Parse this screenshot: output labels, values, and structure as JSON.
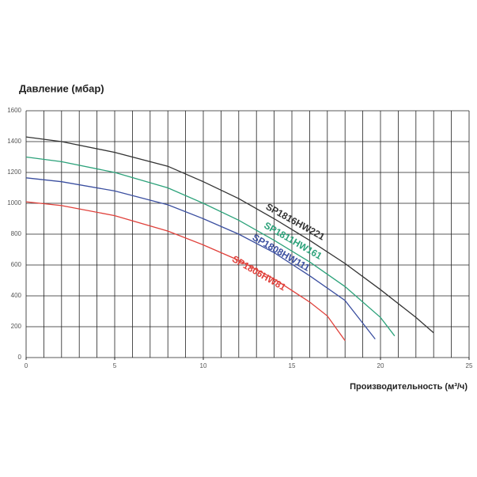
{
  "chart_data": {
    "type": "line",
    "y_axis_label": "Давление (мбар)",
    "x_axis_label": "Производительность (м³/ч)",
    "xlim": [
      0,
      25
    ],
    "xticks": [
      0,
      5,
      10,
      15,
      20,
      25
    ],
    "x_minor_ticks": [
      0,
      1,
      2,
      3,
      4,
      5,
      6,
      7,
      8,
      9,
      10,
      11,
      12,
      13,
      14,
      15,
      16,
      17,
      18,
      19,
      20,
      21,
      22,
      23,
      24,
      25
    ],
    "ylim": [
      0,
      1600
    ],
    "yticks": [
      0,
      200,
      400,
      600,
      800,
      1000,
      1200,
      1400,
      1600
    ],
    "grid": true,
    "series": [
      {
        "name": "SP1816HW221",
        "color": "#333333",
        "x": [
          0,
          2,
          5,
          8,
          10,
          12,
          14,
          16,
          18,
          20,
          22,
          23
        ],
        "values": [
          1430,
          1400,
          1330,
          1240,
          1140,
          1030,
          900,
          760,
          610,
          440,
          260,
          160
        ]
      },
      {
        "name": "SP1811HW161",
        "color": "#2ca27a",
        "x": [
          0,
          2,
          5,
          8,
          10,
          12,
          14,
          16,
          18,
          20,
          20.8
        ],
        "values": [
          1300,
          1270,
          1200,
          1100,
          1000,
          890,
          760,
          620,
          460,
          260,
          140
        ]
      },
      {
        "name": "SP1808HW111",
        "color": "#3b4fa0",
        "x": [
          0,
          2,
          5,
          8,
          10,
          12,
          14,
          16,
          18,
          19.7
        ],
        "values": [
          1165,
          1140,
          1080,
          990,
          900,
          800,
          680,
          530,
          370,
          120
        ]
      },
      {
        "name": "SP1806HW81",
        "color": "#e0403a",
        "x": [
          0,
          2,
          5,
          8,
          10,
          12,
          14,
          16,
          17,
          18
        ],
        "values": [
          1010,
          985,
          920,
          820,
          730,
          630,
          510,
          360,
          270,
          110
        ]
      }
    ]
  }
}
